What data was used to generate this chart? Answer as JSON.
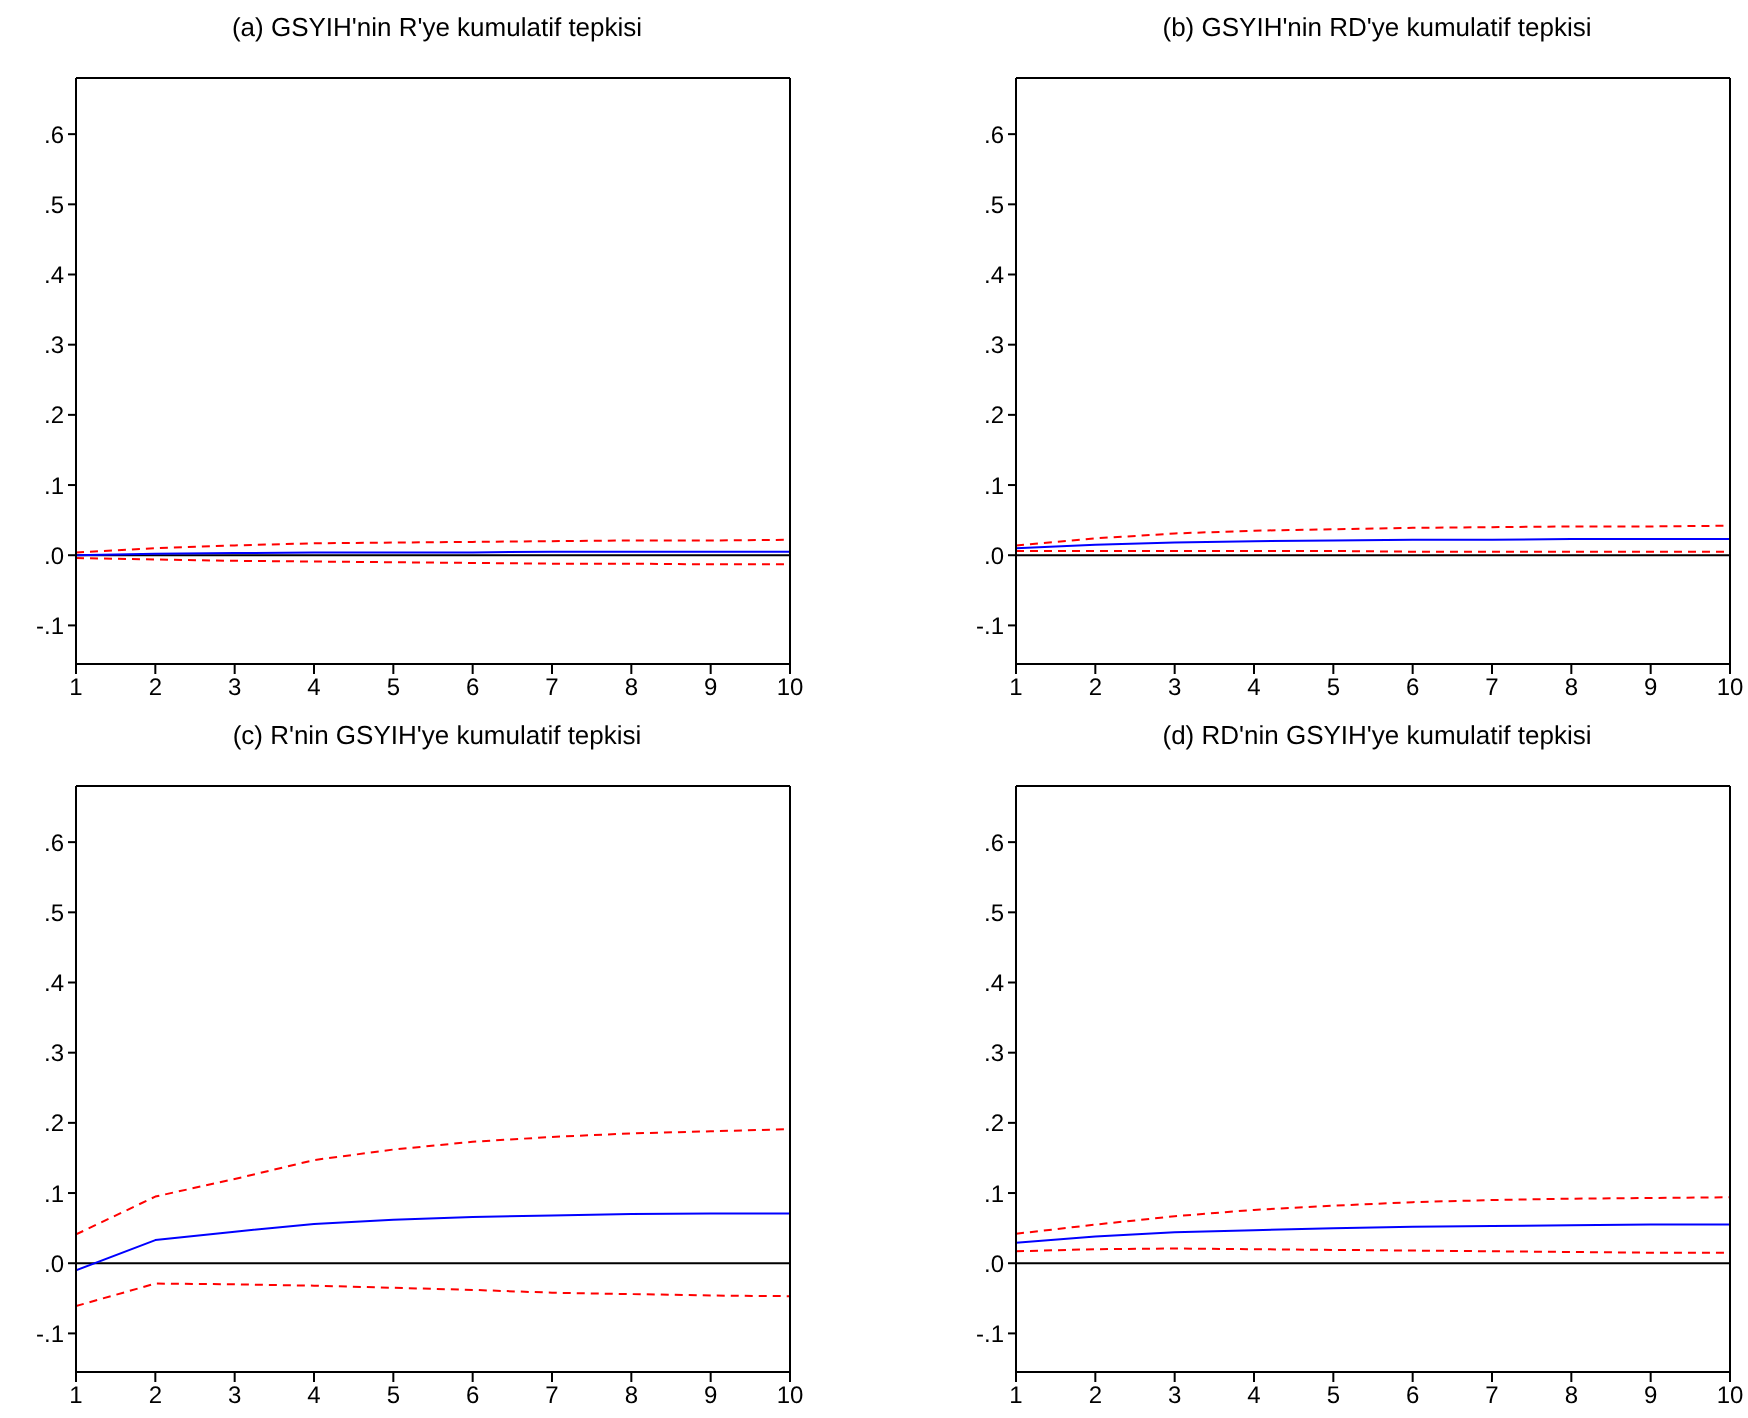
{
  "chart_data": [
    {
      "type": "line",
      "title": "(a) GSYIH'nin R'ye kumulatif tepkisi",
      "x": [
        1,
        2,
        3,
        4,
        5,
        6,
        7,
        8,
        9,
        10
      ],
      "xlim": [
        1,
        10
      ],
      "xticks": [
        1,
        2,
        3,
        4,
        5,
        6,
        7,
        8,
        9,
        10
      ],
      "ylim": [
        -0.155,
        0.68
      ],
      "yticks": [
        {
          "value": -0.1,
          "label": "-.1"
        },
        {
          "value": 0,
          "label": ".0"
        },
        {
          "value": 0.1,
          "label": ".1"
        },
        {
          "value": 0.2,
          "label": ".2"
        },
        {
          "value": 0.3,
          "label": ".3"
        },
        {
          "value": 0.4,
          "label": ".4"
        },
        {
          "value": 0.5,
          "label": ".5"
        },
        {
          "value": 0.6,
          "label": ".6"
        }
      ],
      "ref_lines": [
        {
          "axis": "y",
          "value": 0,
          "color": "#000000"
        }
      ],
      "series": [
        {
          "color": "#0000ff",
          "line_style": "solid",
          "values": [
            0.0,
            0.002,
            0.003,
            0.004,
            0.004,
            0.004,
            0.005,
            0.005,
            0.005,
            0.005
          ]
        },
        {
          "color": "#ff0000",
          "line_style": "dashed",
          "values": [
            0.004,
            0.01,
            0.014,
            0.017,
            0.018,
            0.019,
            0.02,
            0.021,
            0.021,
            0.022
          ]
        },
        {
          "color": "#ff0000",
          "line_style": "dashed",
          "values": [
            -0.004,
            -0.006,
            -0.008,
            -0.009,
            -0.01,
            -0.011,
            -0.012,
            -0.012,
            -0.013,
            -0.013
          ]
        }
      ]
    },
    {
      "type": "line",
      "title": "(b) GSYIH'nin RD'ye kumulatif tepkisi",
      "x": [
        1,
        2,
        3,
        4,
        5,
        6,
        7,
        8,
        9,
        10
      ],
      "xlim": [
        1,
        10
      ],
      "xticks": [
        1,
        2,
        3,
        4,
        5,
        6,
        7,
        8,
        9,
        10
      ],
      "ylim": [
        -0.155,
        0.68
      ],
      "yticks": [
        {
          "value": -0.1,
          "label": "-.1"
        },
        {
          "value": 0,
          "label": ".0"
        },
        {
          "value": 0.1,
          "label": ".1"
        },
        {
          "value": 0.2,
          "label": ".2"
        },
        {
          "value": 0.3,
          "label": ".3"
        },
        {
          "value": 0.4,
          "label": ".4"
        },
        {
          "value": 0.5,
          "label": ".5"
        },
        {
          "value": 0.6,
          "label": ".6"
        }
      ],
      "ref_lines": [
        {
          "axis": "y",
          "value": 0,
          "color": "#000000"
        }
      ],
      "series": [
        {
          "color": "#0000ff",
          "line_style": "solid",
          "values": [
            0.01,
            0.015,
            0.018,
            0.02,
            0.021,
            0.022,
            0.022,
            0.023,
            0.023,
            0.023
          ]
        },
        {
          "color": "#ff0000",
          "line_style": "dashed",
          "values": [
            0.014,
            0.024,
            0.031,
            0.035,
            0.037,
            0.039,
            0.04,
            0.041,
            0.041,
            0.042
          ]
        },
        {
          "color": "#ff0000",
          "line_style": "dashed",
          "values": [
            0.006,
            0.006,
            0.006,
            0.006,
            0.006,
            0.005,
            0.005,
            0.005,
            0.005,
            0.005
          ]
        }
      ]
    },
    {
      "type": "line",
      "title": "(c) R'nin GSYIH'ye kumulatif tepkisi",
      "x": [
        1,
        2,
        3,
        4,
        5,
        6,
        7,
        8,
        9,
        10
      ],
      "xlim": [
        1,
        10
      ],
      "xticks": [
        1,
        2,
        3,
        4,
        5,
        6,
        7,
        8,
        9,
        10
      ],
      "ylim": [
        -0.155,
        0.68
      ],
      "yticks": [
        {
          "value": -0.1,
          "label": "-.1"
        },
        {
          "value": 0,
          "label": ".0"
        },
        {
          "value": 0.1,
          "label": ".1"
        },
        {
          "value": 0.2,
          "label": ".2"
        },
        {
          "value": 0.3,
          "label": ".3"
        },
        {
          "value": 0.4,
          "label": ".4"
        },
        {
          "value": 0.5,
          "label": ".5"
        },
        {
          "value": 0.6,
          "label": ".6"
        }
      ],
      "ref_lines": [
        {
          "axis": "y",
          "value": 0,
          "color": "#000000"
        }
      ],
      "series": [
        {
          "color": "#0000ff",
          "line_style": "solid",
          "values": [
            -0.01,
            0.033,
            0.045,
            0.056,
            0.062,
            0.066,
            0.068,
            0.07,
            0.071,
            0.071
          ]
        },
        {
          "color": "#ff0000",
          "line_style": "dashed",
          "values": [
            0.041,
            0.095,
            0.12,
            0.147,
            0.162,
            0.173,
            0.18,
            0.185,
            0.188,
            0.191
          ]
        },
        {
          "color": "#ff0000",
          "line_style": "dashed",
          "values": [
            -0.061,
            -0.029,
            -0.03,
            -0.032,
            -0.035,
            -0.038,
            -0.042,
            -0.044,
            -0.046,
            -0.047
          ]
        }
      ]
    },
    {
      "type": "line",
      "title": "(d) RD'nin GSYIH'ye kumulatif tepkisi",
      "x": [
        1,
        2,
        3,
        4,
        5,
        6,
        7,
        8,
        9,
        10
      ],
      "xlim": [
        1,
        10
      ],
      "xticks": [
        1,
        2,
        3,
        4,
        5,
        6,
        7,
        8,
        9,
        10
      ],
      "ylim": [
        -0.155,
        0.68
      ],
      "yticks": [
        {
          "value": -0.1,
          "label": "-.1"
        },
        {
          "value": 0,
          "label": ".0"
        },
        {
          "value": 0.1,
          "label": ".1"
        },
        {
          "value": 0.2,
          "label": ".2"
        },
        {
          "value": 0.3,
          "label": ".3"
        },
        {
          "value": 0.4,
          "label": ".4"
        },
        {
          "value": 0.5,
          "label": ".5"
        },
        {
          "value": 0.6,
          "label": ".6"
        }
      ],
      "ref_lines": [
        {
          "axis": "y",
          "value": 0,
          "color": "#000000"
        }
      ],
      "series": [
        {
          "color": "#0000ff",
          "line_style": "solid",
          "values": [
            0.029,
            0.038,
            0.044,
            0.047,
            0.05,
            0.052,
            0.053,
            0.054,
            0.055,
            0.055
          ]
        },
        {
          "color": "#ff0000",
          "line_style": "dashed",
          "values": [
            0.042,
            0.055,
            0.067,
            0.076,
            0.082,
            0.087,
            0.09,
            0.092,
            0.093,
            0.094
          ]
        },
        {
          "color": "#ff0000",
          "line_style": "dashed",
          "values": [
            0.017,
            0.02,
            0.021,
            0.02,
            0.019,
            0.018,
            0.017,
            0.016,
            0.015,
            0.015
          ]
        }
      ]
    }
  ]
}
